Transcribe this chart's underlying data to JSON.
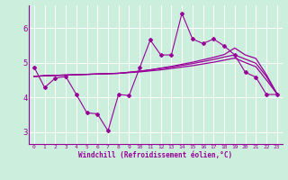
{
  "xlabel": "Windchill (Refroidissement éolien,°C)",
  "background_color": "#cceedd",
  "line_color": "#990099",
  "grid_color": "#ffffff",
  "xlim": [
    -0.5,
    23.5
  ],
  "ylim": [
    2.65,
    6.65
  ],
  "yticks": [
    3,
    4,
    5,
    6
  ],
  "xticks": [
    0,
    1,
    2,
    3,
    4,
    5,
    6,
    7,
    8,
    9,
    10,
    11,
    12,
    13,
    14,
    15,
    16,
    17,
    18,
    19,
    20,
    21,
    22,
    23
  ],
  "line1_x": [
    0,
    1,
    2,
    3,
    4,
    5,
    6,
    7,
    8,
    9,
    10,
    11,
    12,
    13,
    14,
    15,
    16,
    17,
    18,
    19,
    20,
    21,
    22,
    23
  ],
  "line1_y": [
    4.87,
    4.28,
    4.55,
    4.6,
    4.08,
    3.55,
    3.52,
    3.03,
    4.08,
    4.05,
    4.85,
    5.65,
    5.22,
    5.22,
    6.42,
    5.68,
    5.55,
    5.68,
    5.48,
    5.22,
    4.72,
    4.58,
    4.08,
    4.08
  ],
  "line2_x": [
    0,
    1,
    2,
    3,
    4,
    5,
    6,
    7,
    8,
    9,
    10,
    11,
    12,
    13,
    14,
    15,
    16,
    17,
    18,
    19,
    20,
    21,
    22,
    23
  ],
  "line2_y": [
    4.6,
    4.62,
    4.63,
    4.64,
    4.65,
    4.66,
    4.67,
    4.68,
    4.69,
    4.71,
    4.73,
    4.76,
    4.79,
    4.83,
    4.87,
    4.91,
    4.96,
    5.01,
    5.07,
    5.13,
    5.0,
    4.88,
    4.5,
    4.1
  ],
  "line3_x": [
    0,
    1,
    2,
    3,
    4,
    5,
    6,
    7,
    8,
    9,
    10,
    11,
    12,
    13,
    14,
    15,
    16,
    17,
    18,
    19,
    20,
    21,
    22,
    23
  ],
  "line3_y": [
    4.6,
    4.62,
    4.63,
    4.64,
    4.65,
    4.66,
    4.67,
    4.68,
    4.69,
    4.72,
    4.75,
    4.79,
    4.83,
    4.87,
    4.92,
    4.97,
    5.03,
    5.09,
    5.16,
    5.22,
    5.1,
    4.98,
    4.6,
    4.1
  ],
  "line4_x": [
    0,
    1,
    2,
    3,
    4,
    5,
    6,
    7,
    8,
    9,
    10,
    11,
    12,
    13,
    14,
    15,
    16,
    17,
    18,
    19,
    20,
    21,
    22,
    23
  ],
  "line4_y": [
    4.6,
    4.62,
    4.63,
    4.64,
    4.65,
    4.66,
    4.67,
    4.68,
    4.69,
    4.72,
    4.75,
    4.79,
    4.84,
    4.89,
    4.95,
    5.01,
    5.08,
    5.15,
    5.23,
    5.42,
    5.22,
    5.12,
    4.65,
    4.1
  ]
}
